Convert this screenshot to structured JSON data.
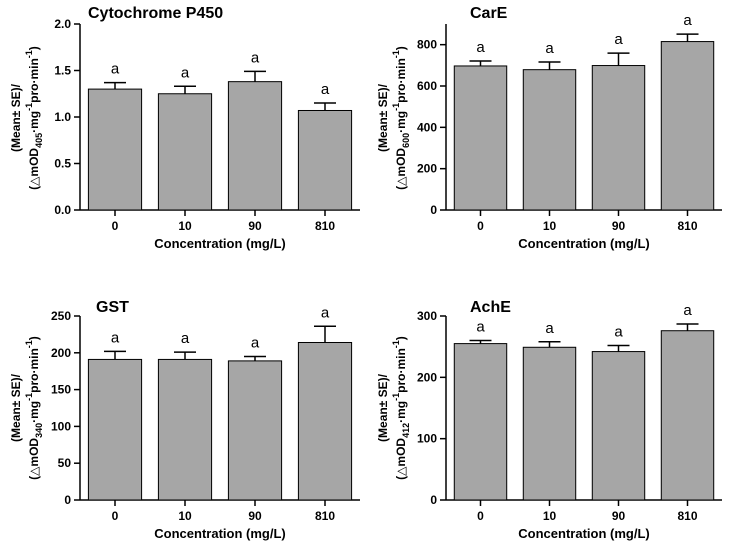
{
  "chart_data": [
    {
      "type": "bar",
      "title": "Cytochrome P450",
      "categories": [
        "0",
        "10",
        "90",
        "810"
      ],
      "values": [
        1.3,
        1.25,
        1.38,
        1.07
      ],
      "errors": [
        0.07,
        0.08,
        0.11,
        0.08
      ],
      "significance": [
        "a",
        "a",
        "a",
        "a"
      ],
      "xlabel": "Concentration (mg/L)",
      "ylabel_line1": "(Mean± SE)/",
      "ylabel_line2": {
        "pre": "(△mOD",
        "sub": "405",
        "mid1": "·mg",
        "sup1": "-1",
        "mid2": "pro·min",
        "sup2": "-1",
        "post": ")"
      },
      "ylim": [
        0,
        2.0
      ],
      "yticks": [
        "0.0",
        "0.5",
        "1.0",
        "1.5",
        "2.0"
      ],
      "ytick_values": [
        0,
        0.5,
        1.0,
        1.5,
        2.0
      ]
    },
    {
      "type": "bar",
      "title": "CarE",
      "categories": [
        "0",
        "10",
        "90",
        "810"
      ],
      "values": [
        697,
        679,
        699,
        815
      ],
      "errors": [
        24,
        37,
        60,
        36
      ],
      "significance": [
        "a",
        "a",
        "a",
        "a"
      ],
      "xlabel": "Concentration (mg/L)",
      "ylabel_line1": "(Mean± SE)/",
      "ylabel_line2": {
        "pre": "(△mOD",
        "sub": "600",
        "mid1": "·mg",
        "sup1": "-1",
        "mid2": "pro·min",
        "sup2": "-1",
        "post": ")"
      },
      "ylim": [
        0,
        900
      ],
      "yticks": [
        "0",
        "200",
        "400",
        "600",
        "800"
      ],
      "ytick_values": [
        0,
        200,
        400,
        600,
        800
      ]
    },
    {
      "type": "bar",
      "title": "GST",
      "categories": [
        "0",
        "10",
        "90",
        "810"
      ],
      "values": [
        191,
        191,
        189,
        214
      ],
      "errors": [
        11,
        10,
        6,
        22
      ],
      "significance": [
        "a",
        "a",
        "a",
        "a"
      ],
      "xlabel": "Concentration (mg/L)",
      "ylabel_line1": "(Mean± SE)/",
      "ylabel_line2": {
        "pre": "(△mOD",
        "sub": "340",
        "mid1": "·mg",
        "sup1": "-1",
        "mid2": "pro·min",
        "sup2": "-1",
        "post": ")"
      },
      "ylim": [
        0,
        250
      ],
      "yticks": [
        "0",
        "50",
        "100",
        "150",
        "200",
        "250"
      ],
      "ytick_values": [
        0,
        50,
        100,
        150,
        200,
        250
      ]
    },
    {
      "type": "bar",
      "title": "AchE",
      "categories": [
        "0",
        "10",
        "90",
        "810"
      ],
      "values": [
        255,
        249,
        242,
        276
      ],
      "errors": [
        5,
        9,
        10,
        11
      ],
      "significance": [
        "a",
        "a",
        "a",
        "a"
      ],
      "xlabel": "Concentration (mg/L)",
      "ylabel_line1": "(Mean± SE)/",
      "ylabel_line2": {
        "pre": "(△mOD",
        "sub": "412",
        "mid1": "·mg",
        "sup1": "-1",
        "mid2": "pro·min",
        "sup2": "-1",
        "post": ")"
      },
      "ylim": [
        0,
        300
      ],
      "yticks": [
        "0",
        "100",
        "200",
        "300"
      ],
      "ytick_values": [
        0,
        100,
        200,
        300
      ]
    }
  ]
}
